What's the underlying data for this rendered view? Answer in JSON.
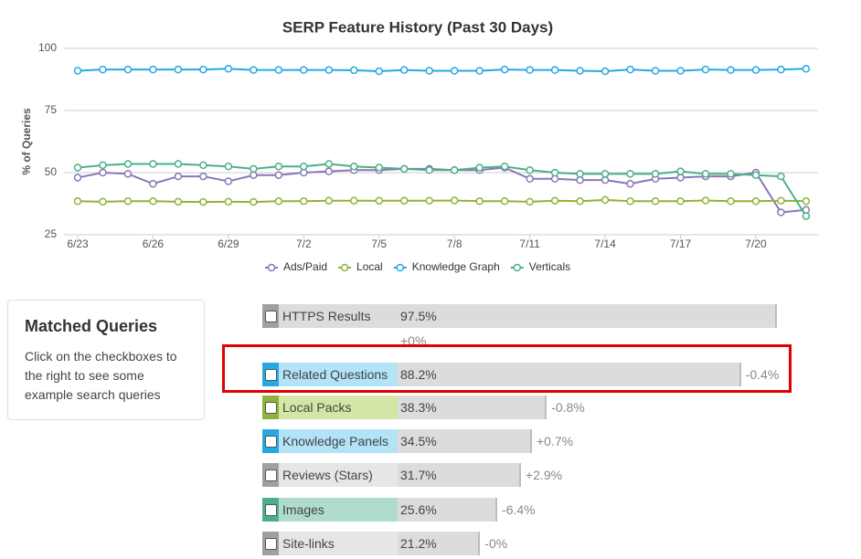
{
  "chart_data": {
    "type": "line",
    "title": "SERP Feature History (Past 30 Days)",
    "y_label": "% of Queries",
    "categories": [
      "6/23",
      null,
      null,
      "6/26",
      null,
      null,
      "6/29",
      null,
      null,
      "7/2",
      null,
      null,
      "7/5",
      null,
      null,
      "7/8",
      null,
      null,
      "7/11",
      null,
      null,
      "7/14",
      null,
      null,
      "7/17",
      null,
      null,
      "7/20",
      null,
      null
    ],
    "ylim": [
      25,
      100
    ],
    "yticks": [
      25,
      50,
      75,
      100
    ],
    "grid": true,
    "series": [
      {
        "name": "Ads/Paid",
        "color": "#8a77b8",
        "values": [
          48,
          50,
          49.5,
          45.5,
          48.5,
          48.5,
          46.5,
          49,
          49,
          50,
          50.5,
          51,
          51,
          51.5,
          51.5,
          51,
          51,
          52,
          47.5,
          47.5,
          47,
          47,
          45.5,
          47.5,
          48,
          48.5,
          48.5,
          50,
          34,
          35
        ]
      },
      {
        "name": "Local",
        "color": "#8fb33a",
        "values": [
          38.5,
          38.3,
          38.5,
          38.5,
          38.3,
          38.2,
          38.3,
          38.2,
          38.5,
          38.5,
          38.7,
          38.7,
          38.7,
          38.7,
          38.7,
          38.8,
          38.5,
          38.5,
          38.3,
          38.7,
          38.5,
          39,
          38.5,
          38.5,
          38.5,
          38.8,
          38.5,
          38.5,
          38.7,
          38.5
        ]
      },
      {
        "name": "Knowledge Graph",
        "color": "#26a9e0",
        "values": [
          91,
          91.5,
          91.5,
          91.5,
          91.5,
          91.5,
          91.8,
          91.3,
          91.3,
          91.3,
          91.3,
          91.2,
          90.8,
          91.3,
          91,
          91,
          91,
          91.5,
          91.3,
          91.3,
          91,
          90.8,
          91.5,
          91,
          91,
          91.5,
          91.3,
          91.3,
          91.5,
          91.8
        ]
      },
      {
        "name": "Verticals",
        "color": "#4caf88",
        "values": [
          52,
          53,
          53.5,
          53.5,
          53.5,
          53,
          52.5,
          51.5,
          52.5,
          52.5,
          53.5,
          52.5,
          52,
          51.5,
          51,
          51,
          52,
          52.5,
          51,
          50,
          49.5,
          49.5,
          49.5,
          49.5,
          50.5,
          49.5,
          49.5,
          49,
          48.5,
          32.5
        ]
      }
    ]
  },
  "panel": {
    "title": "Matched Queries",
    "text": "Click on the checkboxes to the right to see some example search queries"
  },
  "features": {
    "items": [
      {
        "name": "HTTPS Results",
        "value": 97.5,
        "value_label": "97.5%",
        "change": "+0%",
        "color": "#a0a0a0",
        "label_bg": "#dcdcdc"
      },
      {
        "name": "Related Questions",
        "value": 88.2,
        "value_label": "88.2%",
        "change": "-0.4%",
        "color": "#26a9e0",
        "label_bg": "#b3e3f7"
      },
      {
        "name": "Local Packs",
        "value": 38.3,
        "value_label": "38.3%",
        "change": "-0.8%",
        "color": "#8fb33a",
        "label_bg": "#d3e6a6"
      },
      {
        "name": "Knowledge Panels",
        "value": 34.5,
        "value_label": "34.5%",
        "change": "+0.7%",
        "color": "#26a9e0",
        "label_bg": "#b3e3f7"
      },
      {
        "name": "Reviews (Stars)",
        "value": 31.7,
        "value_label": "31.7%",
        "change": "+2.9%",
        "color": "#a0a0a0",
        "label_bg": "#e6e6e6"
      },
      {
        "name": "Images",
        "value": 25.6,
        "value_label": "25.6%",
        "change": "-6.4%",
        "color": "#4caf88",
        "label_bg": "#b0dccb"
      },
      {
        "name": "Site-links",
        "value": 21.2,
        "value_label": "21.2%",
        "change": "-0%",
        "color": "#a0a0a0",
        "label_bg": "#e6e6e6"
      }
    ]
  }
}
